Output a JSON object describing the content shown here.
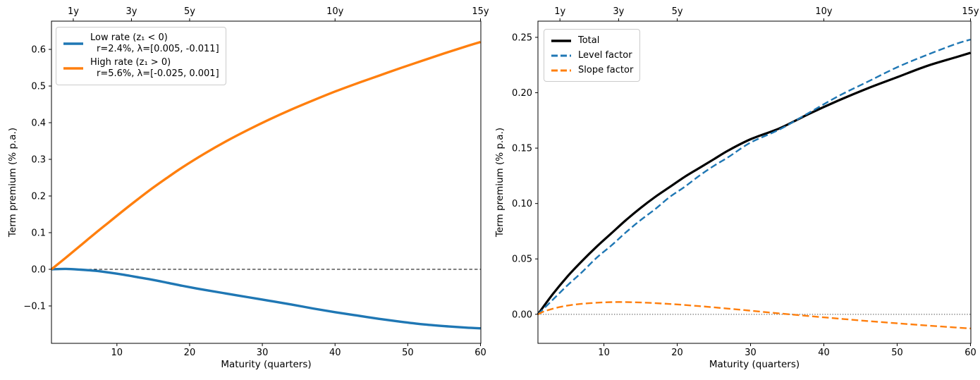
{
  "figure": {
    "background": "#ffffff"
  },
  "colors": {
    "blue": "#1f77b4",
    "orange": "#ff7f0e",
    "black": "#000000"
  },
  "chart_data": [
    {
      "type": "line",
      "title": "",
      "xlabel": "Maturity (quarters)",
      "ylabel": "Term premium (% p.a.)",
      "xlim": [
        1,
        60.05
      ],
      "ylim": [
        -0.202,
        0.677
      ],
      "xticks": [
        10,
        20,
        30,
        40,
        50,
        60
      ],
      "xtick_labels": [
        "10",
        "20",
        "30",
        "40",
        "50",
        "60"
      ],
      "yticks": [
        -0.1,
        0.0,
        0.1,
        0.2,
        0.3,
        0.4,
        0.5,
        0.6
      ],
      "ytick_labels": [
        "−0.1",
        "0.0",
        "0.1",
        "0.2",
        "0.3",
        "0.4",
        "0.5",
        "0.6"
      ],
      "top_axis_ticks": [
        {
          "q": 4,
          "label": "1y"
        },
        {
          "q": 12,
          "label": "3y"
        },
        {
          "q": 20,
          "label": "5y"
        },
        {
          "q": 40,
          "label": "10y"
        },
        {
          "q": 60,
          "label": "15y"
        }
      ],
      "zero_line": "dashed",
      "grid": false,
      "legend": {
        "position": "upper-left",
        "entries": [
          {
            "line1": "Low rate (z₁ < 0)",
            "line2": "r=2.4%, λ=[0.005, -0.011]",
            "color": "#1f77b4",
            "style": "solid"
          },
          {
            "line1": "High rate (z₁ > 0)",
            "line2": "r=5.6%, λ=[-0.025, 0.001]",
            "color": "#ff7f0e",
            "style": "solid"
          }
        ]
      },
      "series": [
        {
          "name": "Low rate (z1 < 0)",
          "slug": "low-rate",
          "color": "#1f77b4",
          "style": "solid",
          "linewidth": 3.4,
          "points": [
            [
              1,
              0.0
            ],
            [
              3,
              0.001
            ],
            [
              5,
              -0.001
            ],
            [
              7,
              -0.004
            ],
            [
              9,
              -0.009
            ],
            [
              11,
              -0.015
            ],
            [
              13,
              -0.022
            ],
            [
              15,
              -0.029
            ],
            [
              17,
              -0.037
            ],
            [
              19,
              -0.045
            ],
            [
              22,
              -0.056
            ],
            [
              25,
              -0.066
            ],
            [
              28,
              -0.076
            ],
            [
              31,
              -0.086
            ],
            [
              34,
              -0.096
            ],
            [
              37,
              -0.107
            ],
            [
              40,
              -0.117
            ],
            [
              43,
              -0.126
            ],
            [
              46,
              -0.135
            ],
            [
              49,
              -0.143
            ],
            [
              52,
              -0.15
            ],
            [
              55,
              -0.155
            ],
            [
              58,
              -0.159
            ],
            [
              60,
              -0.161
            ]
          ]
        },
        {
          "name": "High rate (z1 > 0)",
          "slug": "high-rate",
          "color": "#ff7f0e",
          "style": "solid",
          "linewidth": 3.4,
          "points": [
            [
              1,
              0.0
            ],
            [
              3,
              0.032
            ],
            [
              5,
              0.065
            ],
            [
              7,
              0.098
            ],
            [
              9,
              0.13
            ],
            [
              11,
              0.162
            ],
            [
              13,
              0.193
            ],
            [
              15,
              0.223
            ],
            [
              17,
              0.251
            ],
            [
              19,
              0.278
            ],
            [
              22,
              0.315
            ],
            [
              25,
              0.349
            ],
            [
              28,
              0.38
            ],
            [
              31,
              0.409
            ],
            [
              34,
              0.436
            ],
            [
              37,
              0.461
            ],
            [
              40,
              0.485
            ],
            [
              43,
              0.507
            ],
            [
              46,
              0.528
            ],
            [
              49,
              0.549
            ],
            [
              52,
              0.569
            ],
            [
              55,
              0.589
            ],
            [
              58,
              0.608
            ],
            [
              60,
              0.62
            ]
          ]
        }
      ]
    },
    {
      "type": "line",
      "title": "",
      "xlabel": "Maturity (quarters)",
      "ylabel": "Term premium (% p.a.)",
      "xlim": [
        1,
        60.05
      ],
      "ylim": [
        -0.0262,
        0.2646
      ],
      "xticks": [
        10,
        20,
        30,
        40,
        50,
        60
      ],
      "xtick_labels": [
        "10",
        "20",
        "30",
        "40",
        "50",
        "60"
      ],
      "yticks": [
        0.0,
        0.05,
        0.1,
        0.15,
        0.2,
        0.25
      ],
      "ytick_labels": [
        "0.00",
        "0.05",
        "0.10",
        "0.15",
        "0.20",
        "0.25"
      ],
      "top_axis_ticks": [
        {
          "q": 4,
          "label": "1y"
        },
        {
          "q": 12,
          "label": "3y"
        },
        {
          "q": 20,
          "label": "5y"
        },
        {
          "q": 40,
          "label": "10y"
        },
        {
          "q": 60,
          "label": "15y"
        }
      ],
      "zero_line": "dotted",
      "grid": false,
      "legend": {
        "position": "upper-left",
        "entries": [
          {
            "label": "Total",
            "color": "#000000",
            "style": "solid"
          },
          {
            "label": "Level factor",
            "color": "#1f77b4",
            "style": "dashed"
          },
          {
            "label": "Slope factor",
            "color": "#ff7f0e",
            "style": "dashed"
          }
        ]
      },
      "series": [
        {
          "name": "Total",
          "slug": "total",
          "color": "#000000",
          "style": "solid",
          "linewidth": 3.2,
          "points": [
            [
              1,
              0.0
            ],
            [
              3,
              0.018
            ],
            [
              5,
              0.034
            ],
            [
              7,
              0.048
            ],
            [
              9,
              0.061
            ],
            [
              11,
              0.073
            ],
            [
              13,
              0.085
            ],
            [
              15,
              0.096
            ],
            [
              17,
              0.106
            ],
            [
              19,
              0.115
            ],
            [
              21,
              0.124
            ],
            [
              23,
              0.132
            ],
            [
              25,
              0.14
            ],
            [
              27,
              0.148
            ],
            [
              30,
              0.158
            ],
            [
              34,
              0.168
            ],
            [
              38,
              0.181
            ],
            [
              42,
              0.193
            ],
            [
              46,
              0.204
            ],
            [
              50,
              0.214
            ],
            [
              54,
              0.224
            ],
            [
              58,
              0.232
            ],
            [
              60,
              0.236
            ]
          ]
        },
        {
          "name": "Level factor",
          "slug": "level-factor",
          "color": "#1f77b4",
          "style": "dashed",
          "linewidth": 2.4,
          "points": [
            [
              1,
              0.0
            ],
            [
              3,
              0.013
            ],
            [
              5,
              0.026
            ],
            [
              7,
              0.038
            ],
            [
              9,
              0.051
            ],
            [
              11,
              0.062
            ],
            [
              13,
              0.074
            ],
            [
              15,
              0.085
            ],
            [
              17,
              0.095
            ],
            [
              19,
              0.106
            ],
            [
              21,
              0.115
            ],
            [
              23,
              0.125
            ],
            [
              25,
              0.134
            ],
            [
              27,
              0.142
            ],
            [
              30,
              0.155
            ],
            [
              34,
              0.167
            ],
            [
              38,
              0.182
            ],
            [
              42,
              0.197
            ],
            [
              46,
              0.21
            ],
            [
              50,
              0.223
            ],
            [
              54,
              0.234
            ],
            [
              58,
              0.244
            ],
            [
              60,
              0.248
            ]
          ]
        },
        {
          "name": "Slope factor",
          "slug": "slope-factor",
          "color": "#ff7f0e",
          "style": "dashed",
          "linewidth": 2.4,
          "points": [
            [
              1,
              0.0
            ],
            [
              2,
              0.003
            ],
            [
              4,
              0.0066
            ],
            [
              6,
              0.0088
            ],
            [
              8,
              0.01
            ],
            [
              10,
              0.0108
            ],
            [
              12,
              0.0111
            ],
            [
              14,
              0.0109
            ],
            [
              16,
              0.0104
            ],
            [
              18,
              0.0097
            ],
            [
              20,
              0.0089
            ],
            [
              23,
              0.0074
            ],
            [
              26,
              0.0057
            ],
            [
              29,
              0.0039
            ],
            [
              32,
              0.002
            ],
            [
              35,
              0.0002
            ],
            [
              38,
              -0.0016
            ],
            [
              41,
              -0.0033
            ],
            [
              44,
              -0.005
            ],
            [
              47,
              -0.0066
            ],
            [
              50,
              -0.0081
            ],
            [
              53,
              -0.0096
            ],
            [
              56,
              -0.011
            ],
            [
              58,
              -0.0119
            ],
            [
              60,
              -0.0128
            ]
          ]
        }
      ]
    }
  ]
}
